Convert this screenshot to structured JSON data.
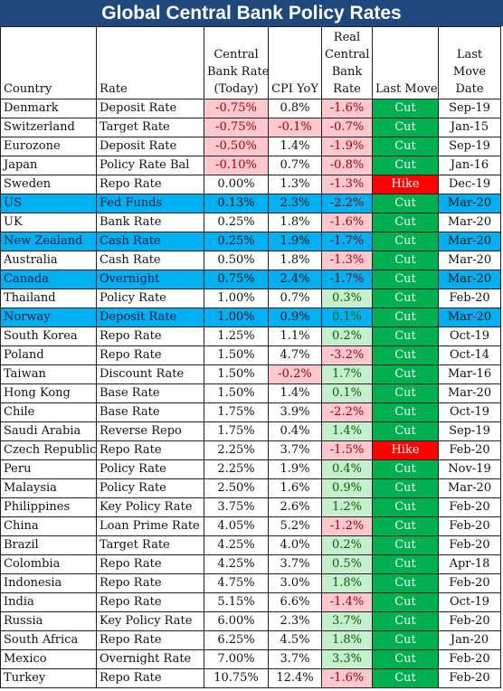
{
  "title": "Global Central Bank Policy Rates",
  "chart_data": {
    "type": "table",
    "title": "Global Central Bank Policy Rates",
    "columns": [
      "Country",
      "Rate",
      "Central Bank Rate (Today)",
      "CPI YoY",
      "Real Central Bank Rate",
      "Last Move",
      "Last Move Date"
    ],
    "column_lines": [
      [],
      [],
      [
        "Central",
        "Bank Rate",
        "(Today)"
      ],
      [
        "CPI YoY"
      ],
      [
        "Real",
        "Central",
        "Bank",
        "Rate"
      ],
      [
        "Last Move"
      ],
      [
        "Last",
        "Move",
        "Date"
      ]
    ],
    "rows": [
      [
        "Denmark",
        "Deposit Rate",
        "-0.75%",
        "0.8%",
        "-1.6%",
        "Cut",
        "Sep-19"
      ],
      [
        "Switzerland",
        "Target Rate",
        "-0.75%",
        "-0.1%",
        "-0.7%",
        "Cut",
        "Jan-15"
      ],
      [
        "Eurozone",
        "Deposit Rate",
        "-0.50%",
        "1.4%",
        "-1.9%",
        "Cut",
        "Sep-19"
      ],
      [
        "Japan",
        "Policy Rate Bal",
        "-0.10%",
        "0.7%",
        "-0.8%",
        "Cut",
        "Jan-16"
      ],
      [
        "Sweden",
        "Repo Rate",
        "0.00%",
        "1.3%",
        "-1.3%",
        "Hike",
        "Dec-19"
      ],
      [
        "US",
        "Fed Funds",
        "0.13%",
        "2.3%",
        "-2.2%",
        "Cut",
        "Mar-20"
      ],
      [
        "UK",
        "Bank Rate",
        "0.25%",
        "1.8%",
        "-1.6%",
        "Cut",
        "Mar-20"
      ],
      [
        "New Zealand",
        "Cash Rate",
        "0.25%",
        "1.9%",
        "-1.7%",
        "Cut",
        "Mar-20"
      ],
      [
        "Australia",
        "Cash Rate",
        "0.50%",
        "1.8%",
        "-1.3%",
        "Cut",
        "Mar-20"
      ],
      [
        "Canada",
        "Overnight",
        "0.75%",
        "2.4%",
        "-1.7%",
        "Cut",
        "Mar-20"
      ],
      [
        "Thailand",
        "Policy Rate",
        "1.00%",
        "0.7%",
        "0.3%",
        "Cut",
        "Feb-20"
      ],
      [
        "Norway",
        "Deposit Rate",
        "1.00%",
        "0.9%",
        "0.1%",
        "Cut",
        "Mar-20"
      ],
      [
        "South Korea",
        "Repo Rate",
        "1.25%",
        "1.1%",
        "0.2%",
        "Cut",
        "Oct-19"
      ],
      [
        "Poland",
        "Repo Rate",
        "1.50%",
        "4.7%",
        "-3.2%",
        "Cut",
        "Oct-14"
      ],
      [
        "Taiwan",
        "Discount Rate",
        "1.50%",
        "-0.2%",
        "1.7%",
        "Cut",
        "Mar-16"
      ],
      [
        "Hong Kong",
        "Base Rate",
        "1.50%",
        "1.4%",
        "0.1%",
        "Cut",
        "Mar-20"
      ],
      [
        "Chile",
        "Base Rate",
        "1.75%",
        "3.9%",
        "-2.2%",
        "Cut",
        "Oct-19"
      ],
      [
        "Saudi Arabia",
        "Reverse Repo",
        "1.75%",
        "0.4%",
        "1.4%",
        "Cut",
        "Sep-19"
      ],
      [
        "Czech Republic",
        "Repo Rate",
        "2.25%",
        "3.7%",
        "-1.5%",
        "Hike",
        "Feb-20"
      ],
      [
        "Peru",
        "Policy Rate",
        "2.25%",
        "1.9%",
        "0.4%",
        "Cut",
        "Nov-19"
      ],
      [
        "Malaysia",
        "Policy Rate",
        "2.50%",
        "1.6%",
        "0.9%",
        "Cut",
        "Mar-20"
      ],
      [
        "Philippines",
        "Key Policy Rate",
        "3.75%",
        "2.6%",
        "1.2%",
        "Cut",
        "Feb-20"
      ],
      [
        "China",
        "Loan Prime Rate",
        "4.05%",
        "5.2%",
        "-1.2%",
        "Cut",
        "Feb-20"
      ],
      [
        "Brazil",
        "Target Rate",
        "4.25%",
        "4.0%",
        "0.2%",
        "Cut",
        "Feb-20"
      ],
      [
        "Colombia",
        "Repo Rate",
        "4.25%",
        "3.7%",
        "0.5%",
        "Cut",
        "Apr-18"
      ],
      [
        "Indonesia",
        "Repo Rate",
        "4.75%",
        "3.0%",
        "1.8%",
        "Cut",
        "Feb-20"
      ],
      [
        "India",
        "Repo Rate",
        "5.15%",
        "6.6%",
        "-1.4%",
        "Cut",
        "Oct-19"
      ],
      [
        "Russia",
        "Key Policy Rate",
        "6.00%",
        "2.3%",
        "3.7%",
        "Cut",
        "Feb-20"
      ],
      [
        "South Africa",
        "Repo Rate",
        "6.25%",
        "4.5%",
        "1.8%",
        "Cut",
        "Jan-20"
      ],
      [
        "Mexico",
        "Overnight Rate",
        "7.00%",
        "3.7%",
        "3.3%",
        "Cut",
        "Feb-20"
      ],
      [
        "Turkey",
        "Repo Rate",
        "10.75%",
        "12.4%",
        "-1.6%",
        "Cut",
        "Feb-20"
      ]
    ],
    "highlighted_rows": [
      "US",
      "New Zealand",
      "Canada",
      "Norway"
    ],
    "colors": {
      "title_bg": "#1f497d",
      "highlight_row": "#00b0f0",
      "negative_fill": "#ffc7ce",
      "negative_text": "#9c0006",
      "positive_fill": "#c6efce",
      "positive_text": "#006100",
      "cut": "#00b050",
      "hike": "#ff0000"
    }
  }
}
